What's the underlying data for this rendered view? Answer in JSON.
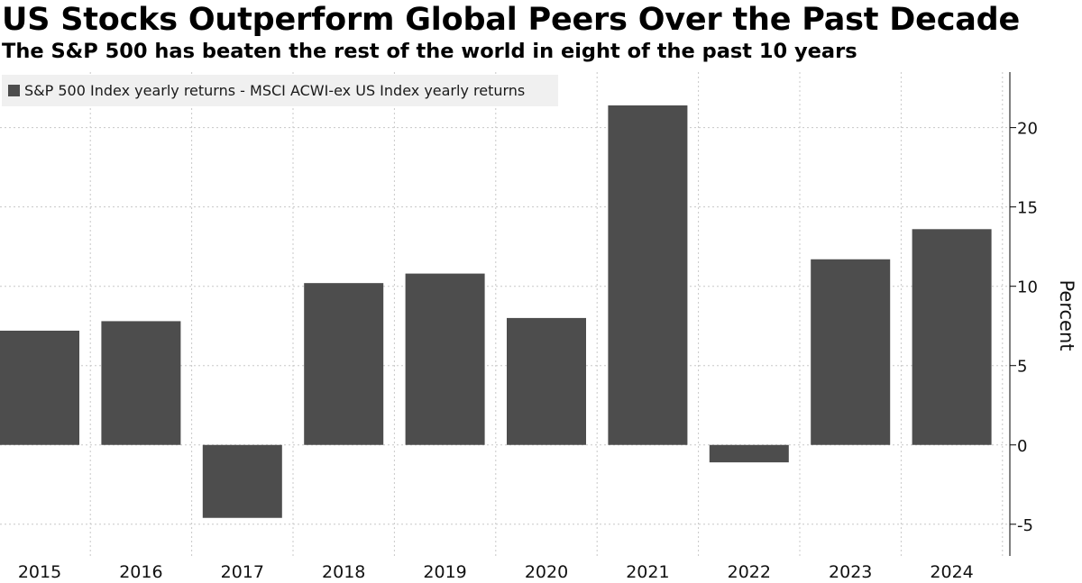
{
  "header": {
    "title": "US Stocks Outperform Global Peers Over the Past Decade",
    "subtitle": "The S&P 500 has beaten the rest of the world in eight of the past 10 years"
  },
  "colors": {
    "bar": "#4d4d4d",
    "grid": "#c8c8c8",
    "axis": "#000000",
    "legend_bg": "#f0f0f0"
  },
  "chart_data": {
    "type": "bar",
    "title": "US Stocks Outperform Global Peers Over the Past Decade",
    "subtitle": "The S&P 500 has beaten the rest of the world in eight of the past 10 years",
    "categories": [
      "2015",
      "2016",
      "2017",
      "2018",
      "2019",
      "2020",
      "2021",
      "2022",
      "2023",
      "2024"
    ],
    "series": [
      {
        "name": "S&P 500 Index yearly returns - MSCI ACWI-ex US Index yearly returns",
        "values": [
          7.2,
          7.8,
          -4.6,
          10.2,
          10.8,
          8.0,
          21.4,
          -1.1,
          11.7,
          13.6
        ]
      }
    ],
    "xlabel": "",
    "ylabel": "Percent",
    "ylim": [
      -7,
      23.5
    ],
    "yticks": [
      -5,
      0,
      5,
      10,
      15,
      20
    ],
    "ytick_labels": [
      "-5",
      "0",
      "5",
      "10",
      "15",
      "20"
    ],
    "y_axis_side": "right",
    "grid": true,
    "legend": "top-left"
  }
}
